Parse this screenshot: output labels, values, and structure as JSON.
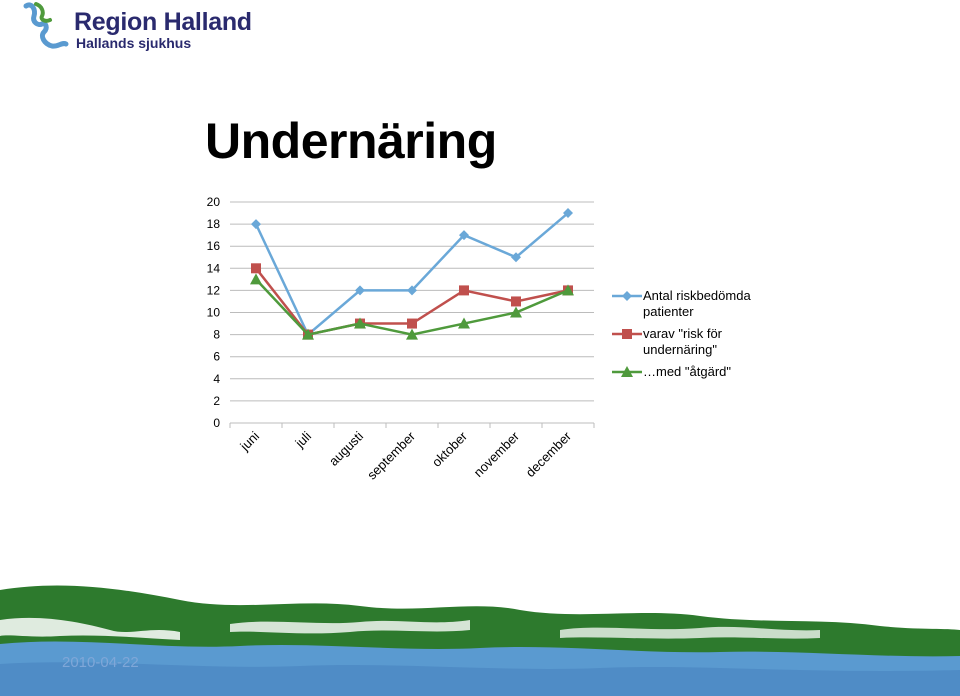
{
  "logo": {
    "name": "Region Halland",
    "subtitle": "Hallands sjukhus"
  },
  "slide": {
    "title": "Undernäring",
    "date": "2010-04-22"
  },
  "colors": {
    "series1": "#6aa8d8",
    "series2": "#c0504d",
    "series3": "#4f9a3c",
    "grid": "#bcbcbc",
    "logo_blue": "#2a2a6e",
    "footer_green": "#2d7a2d",
    "footer_blue": "#5a9ad0"
  },
  "chart_data": {
    "type": "line",
    "categories": [
      "juni",
      "juli",
      "augusti",
      "september",
      "oktober",
      "november",
      "december"
    ],
    "ylim": [
      0,
      20
    ],
    "yticks": [
      0,
      2,
      4,
      6,
      8,
      10,
      12,
      14,
      16,
      18,
      20
    ],
    "grid": true,
    "legend_position": "right",
    "series": [
      {
        "name": "Antal riskbedömda patienter",
        "marker": "diamond",
        "values": [
          18,
          8,
          12,
          12,
          17,
          15,
          19
        ]
      },
      {
        "name": "varav \"risk för undernäring\"",
        "marker": "square",
        "values": [
          14,
          8,
          9,
          9,
          12,
          11,
          12
        ]
      },
      {
        "name": "…med \"åtgärd\"",
        "marker": "triangle",
        "values": [
          13,
          8,
          9,
          8,
          9,
          10,
          12
        ]
      }
    ]
  }
}
